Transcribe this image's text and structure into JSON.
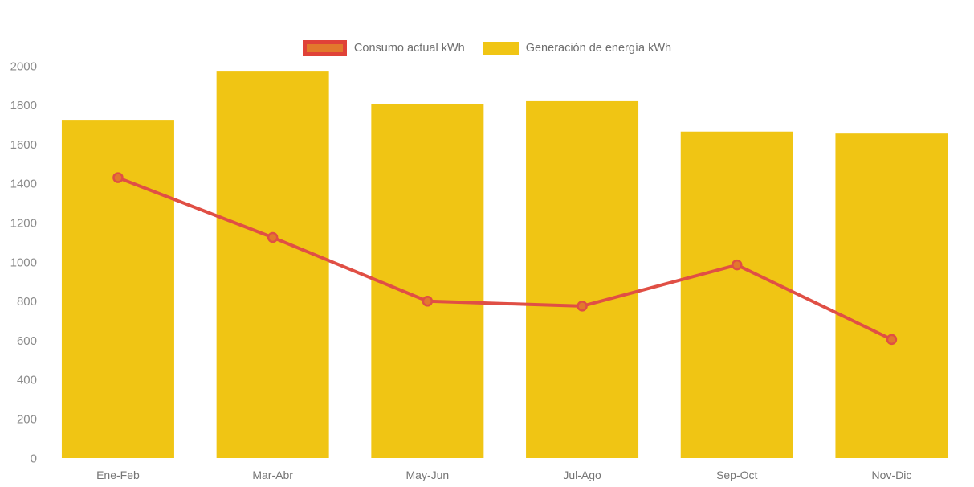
{
  "colors": {
    "bar_fill": "#F0C514",
    "line_stroke": "#E04F45",
    "marker_fill": "#E2792C",
    "marker_stroke": "#E04F45",
    "legend_consumo_swatch_fill": "#E2792C",
    "legend_consumo_swatch_border": "#E04238",
    "legend_generacion_swatch_fill": "#F0C514",
    "legend_text": "#6E6E6E",
    "axis_tick_text": "#8A8A8A",
    "category_text": "#757575",
    "background": "#FFFFFF"
  },
  "legend": {
    "position": "top-center",
    "items": [
      {
        "id": "consumo",
        "label": "Consumo actual kWh",
        "swatch": "line-marker-swatch"
      },
      {
        "id": "generacion",
        "label": "Generación de energía kWh",
        "swatch": "bar-swatch"
      }
    ]
  },
  "chart_data": {
    "type": "combo-bar-line",
    "title": "",
    "xlabel": "",
    "ylabel": "",
    "categories": [
      "Ene-Feb",
      "Mar-Abr",
      "May-Jun",
      "Jul-Ago",
      "Sep-Oct",
      "Nov-Dic"
    ],
    "series": [
      {
        "name": "Consumo actual kWh",
        "type": "line",
        "values": [
          1430,
          1125,
          800,
          775,
          985,
          605
        ]
      },
      {
        "name": "Generación de energía kWh",
        "type": "bar",
        "values": [
          1725,
          1975,
          1805,
          1820,
          1665,
          1655
        ]
      }
    ],
    "ylim": [
      0,
      2000
    ],
    "yticks": [
      0,
      200,
      400,
      600,
      800,
      1000,
      1200,
      1400,
      1600,
      1800,
      2000
    ],
    "grid": false,
    "legend_position": "top-center"
  }
}
